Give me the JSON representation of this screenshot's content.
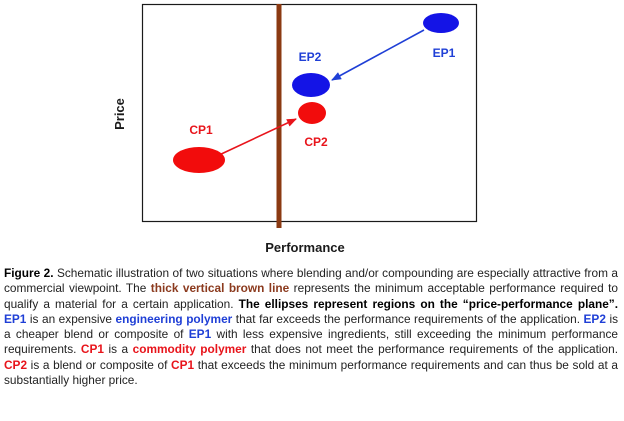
{
  "diagram": {
    "y_axis_label": "Price",
    "x_axis_label": "Performance",
    "labels": {
      "cp1": "CP1",
      "cp2": "CP2",
      "ep1": "EP1",
      "ep2": "EP2"
    },
    "colors": {
      "red": "#f20c0c",
      "blue": "#1414e6",
      "brown": "#8b3a12",
      "arrow_red": "#e8141b",
      "arrow_blue": "#1f3fd6",
      "text_red": "#e8141b",
      "text_blue": "#1f3fd6"
    }
  },
  "caption": {
    "figure_label": "Figure 2.",
    "t1": "Schematic illustration of two situations where blending and/or compounding are especially attractive from a commercial viewpoint.  The ",
    "t2": "thick vertical brown line",
    "t3": " represents the minimum acceptable performance required to qualify a material for a certain application. ",
    "t4": "The ellipses represent regions on the “price-performance plane”.",
    "t5": "   ",
    "t6": "EP1",
    "t7": " is an expensive ",
    "t8": "engineering polymer",
    "t9": " that far exceeds the performance requirements of the application.  ",
    "t10": "EP2",
    "t11": " is a cheaper blend or composite of ",
    "t12": "EP1",
    "t13": " with less expensive ingredients, still exceeding the minimum performance requirements.  ",
    "t14": "CP1",
    "t15": " is a ",
    "t16": "commodity polymer",
    "t17": " that does not meet the performance requirements of the application.  ",
    "t18": "CP2",
    "t19": " is a blend or composite of ",
    "t20": "CP1",
    "t21": " that exceeds the minimum performance requirements and can thus be sold at a substantially higher price."
  }
}
